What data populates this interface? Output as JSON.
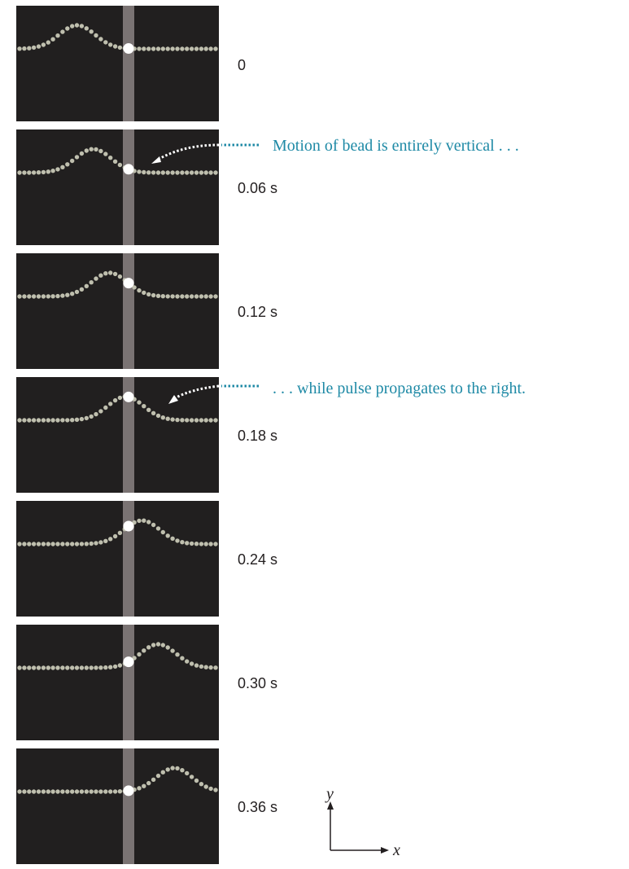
{
  "frames": [
    {
      "time_label": "0",
      "pulse_center": 0.3
    },
    {
      "time_label": "0.06 s",
      "pulse_center": 0.38
    },
    {
      "time_label": "0.12 s",
      "pulse_center": 0.46
    },
    {
      "time_label": "0.18 s",
      "pulse_center": 0.54
    },
    {
      "time_label": "0.24 s",
      "pulse_center": 0.62
    },
    {
      "time_label": "0.30 s",
      "pulse_center": 0.7
    },
    {
      "time_label": "0.36 s",
      "pulse_center": 0.78
    }
  ],
  "annotations": {
    "vertical_motion": "Motion of bead is entirely vertical . . .",
    "propagation": ". . . while pulse propagates to the right."
  },
  "axes": {
    "y_label": "y",
    "x_label": "x"
  },
  "colors": {
    "background": "#211f1f",
    "bead": "#bfbfae",
    "marked_bead": "#ffffff",
    "guide_band": "#7a7373",
    "annotation": "#1f8aa6"
  }
}
